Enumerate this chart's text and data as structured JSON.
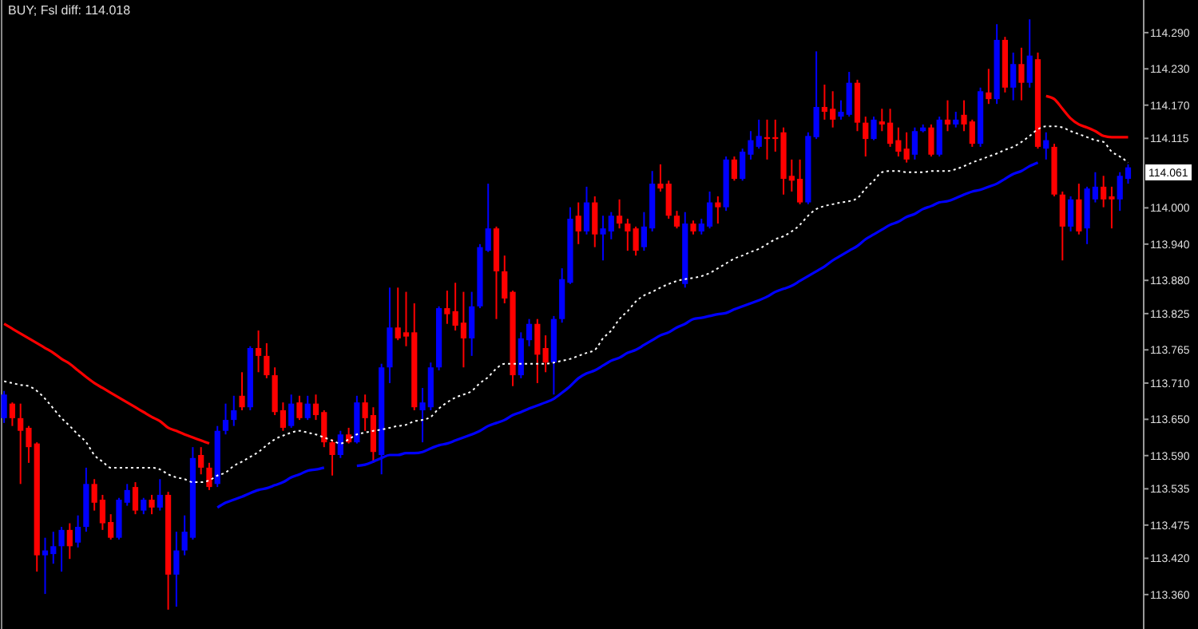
{
  "chart_data": {
    "type": "candlestick",
    "title": "BUY; Fsl diff: 114.018",
    "categories": [
      null,
      null,
      null,
      null,
      null,
      null,
      null,
      null,
      null,
      null,
      null,
      null,
      null,
      null,
      null,
      null,
      null,
      null,
      null,
      null,
      null,
      null,
      null,
      null,
      null,
      null,
      null,
      null,
      null,
      null,
      null,
      null,
      null,
      null,
      null,
      null,
      null,
      null,
      null,
      null,
      null,
      null,
      null,
      null,
      null,
      null,
      null,
      null,
      null,
      null,
      null,
      null,
      null,
      null,
      null,
      null,
      null,
      null,
      null,
      null,
      null,
      null,
      null,
      null,
      null,
      null,
      null,
      null,
      null,
      null,
      null,
      null,
      null,
      null,
      null,
      null,
      null,
      null,
      null,
      null,
      null,
      null,
      null,
      null,
      null,
      null,
      null,
      null,
      null,
      null,
      null,
      null,
      null,
      null,
      null,
      null,
      null,
      null,
      null,
      null,
      null,
      null,
      null,
      null,
      null,
      null,
      null,
      null,
      null,
      null,
      null,
      null,
      null,
      null,
      null,
      null,
      null,
      null,
      null,
      null,
      null,
      null,
      null,
      null,
      null,
      null,
      null,
      null,
      null,
      null,
      null,
      null,
      null,
      null,
      null,
      null,
      null,
      null
    ],
    "ohlc": [
      [
        113.652,
        113.697,
        113.644,
        113.691
      ],
      [
        113.676,
        113.678,
        113.639,
        113.652
      ],
      [
        113.652,
        113.676,
        113.543,
        113.631
      ],
      [
        113.636,
        113.639,
        113.578,
        113.604
      ],
      [
        113.61,
        113.612,
        113.398,
        113.425
      ],
      [
        113.425,
        113.454,
        113.361,
        113.433
      ],
      [
        113.427,
        113.464,
        113.411,
        113.44
      ],
      [
        113.44,
        113.472,
        113.398,
        113.467
      ],
      [
        113.467,
        113.478,
        113.419,
        113.44
      ],
      [
        113.446,
        113.491,
        113.438,
        113.472
      ],
      [
        113.472,
        113.57,
        113.464,
        113.543
      ],
      [
        113.543,
        113.551,
        113.499,
        113.512
      ],
      [
        113.517,
        113.525,
        113.467,
        113.478
      ],
      [
        113.48,
        113.493,
        113.451,
        113.454
      ],
      [
        113.454,
        113.52,
        113.451,
        113.517
      ],
      [
        113.512,
        113.543,
        113.507,
        113.533
      ],
      [
        113.538,
        113.546,
        113.493,
        113.499
      ],
      [
        113.499,
        113.52,
        113.493,
        113.517
      ],
      [
        113.517,
        113.525,
        113.493,
        113.504
      ],
      [
        113.504,
        113.551,
        113.499,
        113.525
      ],
      [
        113.525,
        113.53,
        113.335,
        113.393
      ],
      [
        113.393,
        113.464,
        113.34,
        113.433
      ],
      [
        113.433,
        113.491,
        113.425,
        113.464
      ],
      [
        113.454,
        113.604,
        113.451,
        113.586
      ],
      [
        113.591,
        113.604,
        113.559,
        113.57
      ],
      [
        113.57,
        113.578,
        113.533,
        113.538
      ],
      [
        113.543,
        113.639,
        113.538,
        113.631
      ],
      [
        113.631,
        113.676,
        113.625,
        113.649
      ],
      [
        113.649,
        113.689,
        113.639,
        113.665
      ],
      [
        113.689,
        113.728,
        113.665,
        113.67
      ],
      [
        113.67,
        113.771,
        113.665,
        113.768
      ],
      [
        113.768,
        113.797,
        113.728,
        113.755
      ],
      [
        113.755,
        113.776,
        113.718,
        113.723
      ],
      [
        113.723,
        113.736,
        113.657,
        113.662
      ],
      [
        113.665,
        113.678,
        113.631,
        113.636
      ],
      [
        113.639,
        113.691,
        113.636,
        113.676
      ],
      [
        113.678,
        113.689,
        113.649,
        113.652
      ],
      [
        113.652,
        113.689,
        113.649,
        113.676
      ],
      [
        113.676,
        113.691,
        113.649,
        113.657
      ],
      [
        113.662,
        113.665,
        113.604,
        113.612
      ],
      [
        113.612,
        113.617,
        113.557,
        113.591
      ],
      [
        113.591,
        113.631,
        113.586,
        113.625
      ],
      [
        113.625,
        113.636,
        113.61,
        113.612
      ],
      [
        113.612,
        113.689,
        113.61,
        113.678
      ],
      [
        113.678,
        113.691,
        113.631,
        113.652
      ],
      [
        113.657,
        113.67,
        113.578,
        113.596
      ],
      [
        113.591,
        113.742,
        113.559,
        113.736
      ],
      [
        113.736,
        113.868,
        113.71,
        113.802
      ],
      [
        113.802,
        113.868,
        113.781,
        113.784
      ],
      [
        113.794,
        113.861,
        113.771,
        113.787
      ],
      [
        113.794,
        113.842,
        113.665,
        113.67
      ],
      [
        113.665,
        113.702,
        113.612,
        113.678
      ],
      [
        113.67,
        113.744,
        113.665,
        113.736
      ],
      [
        113.736,
        113.837,
        113.731,
        113.834
      ],
      [
        113.834,
        113.863,
        113.808,
        113.824
      ],
      [
        113.829,
        113.876,
        113.797,
        113.805
      ],
      [
        113.81,
        113.861,
        113.736,
        113.784
      ],
      [
        113.784,
        113.861,
        113.755,
        113.837
      ],
      [
        113.837,
        113.94,
        113.834,
        113.935
      ],
      [
        113.929,
        114.04,
        113.927,
        113.966
      ],
      [
        113.966,
        113.969,
        113.816,
        113.895
      ],
      [
        113.895,
        113.921,
        113.842,
        113.85
      ],
      [
        113.861,
        113.863,
        113.705,
        113.723
      ],
      [
        113.723,
        113.794,
        113.718,
        113.784
      ],
      [
        113.781,
        113.816,
        113.771,
        113.808
      ],
      [
        113.808,
        113.816,
        113.71,
        113.757
      ],
      [
        113.768,
        113.789,
        113.728,
        113.744
      ],
      [
        113.744,
        113.821,
        113.691,
        113.816
      ],
      [
        113.816,
        113.9,
        113.81,
        113.882
      ],
      [
        113.876,
        114.001,
        113.874,
        113.982
      ],
      [
        113.987,
        114.009,
        113.94,
        113.961
      ],
      [
        113.961,
        114.035,
        113.956,
        114.009
      ],
      [
        114.009,
        114.019,
        113.935,
        113.956
      ],
      [
        113.956,
        113.987,
        113.913,
        113.966
      ],
      [
        113.961,
        113.993,
        113.948,
        113.987
      ],
      [
        113.987,
        114.014,
        113.966,
        113.974
      ],
      [
        113.974,
        113.982,
        113.929,
        113.961
      ],
      [
        113.966,
        113.969,
        113.921,
        113.929
      ],
      [
        113.935,
        113.993,
        113.929,
        113.969
      ],
      [
        113.966,
        114.061,
        113.961,
        114.04
      ],
      [
        114.04,
        114.072,
        114.027,
        114.032
      ],
      [
        114.04,
        114.045,
        113.982,
        113.987
      ],
      [
        113.987,
        113.995,
        113.966,
        113.969
      ],
      [
        113.874,
        113.993,
        113.868,
        113.974
      ],
      [
        113.974,
        113.979,
        113.956,
        113.961
      ],
      [
        113.961,
        113.982,
        113.956,
        113.974
      ],
      [
        113.969,
        114.027,
        113.966,
        114.009
      ],
      [
        114.009,
        114.019,
        113.974,
        114.001
      ],
      [
        114.001,
        114.085,
        113.995,
        114.08
      ],
      [
        114.08,
        114.085,
        114.045,
        114.048
      ],
      [
        114.048,
        114.098,
        114.045,
        114.093
      ],
      [
        114.088,
        114.127,
        114.08,
        114.112
      ],
      [
        114.101,
        114.146,
        114.098,
        114.119
      ],
      [
        114.117,
        114.146,
        114.08,
        114.114
      ],
      [
        114.117,
        114.146,
        114.093,
        114.114
      ],
      [
        114.125,
        114.133,
        114.022,
        114.048
      ],
      [
        114.053,
        114.08,
        114.027,
        114.045
      ],
      [
        114.048,
        114.08,
        114.006,
        114.009
      ],
      [
        114.009,
        114.125,
        114.006,
        114.119
      ],
      [
        114.117,
        114.259,
        114.114,
        114.167
      ],
      [
        114.167,
        114.204,
        114.146,
        114.159
      ],
      [
        114.164,
        114.193,
        114.133,
        114.146
      ],
      [
        114.151,
        114.178,
        114.146,
        114.159
      ],
      [
        114.154,
        114.225,
        114.151,
        114.207
      ],
      [
        114.207,
        114.212,
        114.127,
        114.141
      ],
      [
        114.141,
        114.151,
        114.085,
        114.114
      ],
      [
        114.114,
        114.151,
        114.112,
        114.146
      ],
      [
        114.143,
        114.164,
        114.127,
        114.138
      ],
      [
        114.141,
        114.164,
        114.101,
        114.106
      ],
      [
        114.112,
        114.133,
        114.085,
        114.093
      ],
      [
        114.098,
        114.125,
        114.075,
        114.08
      ],
      [
        114.088,
        114.133,
        114.08,
        114.127
      ],
      [
        114.127,
        114.138,
        114.125,
        114.133
      ],
      [
        114.133,
        114.138,
        114.085,
        114.088
      ],
      [
        114.088,
        114.151,
        114.085,
        114.146
      ],
      [
        114.146,
        114.178,
        114.127,
        114.138
      ],
      [
        114.138,
        114.159,
        114.133,
        114.146
      ],
      [
        114.154,
        114.178,
        114.127,
        114.138
      ],
      [
        114.143,
        114.146,
        114.101,
        114.106
      ],
      [
        114.106,
        114.199,
        114.101,
        114.193
      ],
      [
        114.191,
        114.23,
        114.172,
        114.18
      ],
      [
        114.18,
        114.304,
        114.172,
        114.278
      ],
      [
        114.278,
        114.283,
        114.191,
        114.199
      ],
      [
        114.199,
        114.257,
        114.178,
        114.238
      ],
      [
        114.238,
        114.265,
        114.178,
        114.207
      ],
      [
        114.207,
        114.312,
        114.199,
        114.252
      ],
      [
        114.246,
        114.257,
        114.098,
        114.101
      ],
      [
        114.098,
        114.125,
        114.08,
        114.112
      ],
      [
        114.101,
        114.106,
        114.019,
        114.022
      ],
      [
        114.022,
        114.027,
        113.913,
        113.969
      ],
      [
        113.969,
        114.019,
        113.961,
        114.014
      ],
      [
        114.014,
        114.04,
        113.956,
        113.961
      ],
      [
        113.966,
        114.035,
        113.94,
        114.032
      ],
      [
        114.014,
        114.059,
        114.009,
        114.035
      ],
      [
        114.035,
        114.053,
        114.001,
        114.014
      ],
      [
        114.019,
        114.035,
        113.966,
        114.014
      ],
      [
        114.014,
        114.059,
        113.995,
        114.053
      ],
      [
        114.048,
        114.072,
        114.04,
        114.067
      ]
    ],
    "colors": [
      "#0000ff",
      "#ff0000",
      "#ff0000",
      "#ff0000",
      "#ff0000",
      "#0000ff",
      "#0000ff",
      "#0000ff",
      "#ff0000",
      "#0000ff",
      "#0000ff",
      "#ff0000",
      "#ff0000",
      "#ff0000",
      "#0000ff",
      "#0000ff",
      "#ff0000",
      "#0000ff",
      "#ff0000",
      "#0000ff",
      "#ff0000",
      "#0000ff",
      "#0000ff",
      "#0000ff",
      "#ff0000",
      "#ff0000",
      "#0000ff",
      "#0000ff",
      "#0000ff",
      "#ff0000",
      "#0000ff",
      "#ff0000",
      "#ff0000",
      "#ff0000",
      "#ff0000",
      "#0000ff",
      "#ff0000",
      "#0000ff",
      "#ff0000",
      "#ff0000",
      "#ff0000",
      "#0000ff",
      "#ff0000",
      "#0000ff",
      "#ff0000",
      "#ff0000",
      "#0000ff",
      "#0000ff",
      "#ff0000",
      "#ff0000",
      "#ff0000",
      "#0000ff",
      "#0000ff",
      "#0000ff",
      "#ff0000",
      "#ff0000",
      "#ff0000",
      "#0000ff",
      "#0000ff",
      "#0000ff",
      "#ff0000",
      "#ff0000",
      "#ff0000",
      "#0000ff",
      "#0000ff",
      "#ff0000",
      "#ff0000",
      "#0000ff",
      "#0000ff",
      "#0000ff",
      "#ff0000",
      "#0000ff",
      "#ff0000",
      "#0000ff",
      "#0000ff",
      "#ff0000",
      "#ff0000",
      "#ff0000",
      "#0000ff",
      "#0000ff",
      "#ff0000",
      "#ff0000",
      "#ff0000",
      "#0000ff",
      "#ff0000",
      "#0000ff",
      "#0000ff",
      "#ff0000",
      "#0000ff",
      "#ff0000",
      "#0000ff",
      "#0000ff",
      "#0000ff",
      "#ff0000",
      "#ff0000",
      "#ff0000",
      "#ff0000",
      "#ff0000",
      "#0000ff",
      "#0000ff",
      "#ff0000",
      "#ff0000",
      "#0000ff",
      "#0000ff",
      "#ff0000",
      "#ff0000",
      "#0000ff",
      "#ff0000",
      "#ff0000",
      "#ff0000",
      "#ff0000",
      "#0000ff",
      "#0000ff",
      "#ff0000",
      "#0000ff",
      "#ff0000",
      "#0000ff",
      "#ff0000",
      "#ff0000",
      "#0000ff",
      "#ff0000",
      "#0000ff",
      "#ff0000",
      "#0000ff",
      "#ff0000",
      "#0000ff",
      "#ff0000",
      "#0000ff",
      "#ff0000",
      "#ff0000",
      "#0000ff",
      "#ff0000",
      "#0000ff",
      "#0000ff",
      "#ff0000",
      "#ff0000",
      "#0000ff",
      "#0000ff"
    ],
    "series": [
      {
        "type": "line",
        "color": "#ff0000",
        "values": [
          113.808,
          113.8,
          113.792,
          113.784,
          113.776,
          113.768,
          113.76,
          113.75,
          113.742,
          113.731,
          113.72,
          113.71,
          113.702,
          113.694,
          113.686,
          113.678,
          113.67,
          113.662,
          113.654,
          113.647,
          113.636,
          113.631,
          113.625,
          113.62,
          113.615,
          113.61,
          null,
          null,
          null,
          null,
          null,
          null,
          null,
          null,
          null,
          null,
          null,
          null,
          null,
          null,
          null,
          null,
          null,
          null,
          null,
          null,
          null,
          null,
          null,
          null,
          null,
          null,
          null,
          null,
          null,
          null,
          null,
          null,
          null,
          null,
          null,
          null,
          null,
          null,
          null,
          null,
          null,
          null,
          null,
          null,
          null,
          null,
          null,
          null,
          null,
          null,
          null,
          null,
          null,
          null,
          null,
          null,
          null,
          null,
          null,
          null,
          null,
          null,
          null,
          null,
          null,
          null,
          null,
          null,
          null,
          null,
          null,
          null,
          null,
          null,
          null,
          null,
          null,
          null,
          null,
          null,
          null,
          null,
          null,
          null,
          null,
          null,
          null,
          null,
          null,
          null,
          null,
          null,
          null,
          null,
          null,
          null,
          null,
          null,
          null,
          null,
          null,
          114.185,
          114.18,
          114.164,
          114.148,
          114.138,
          114.133,
          114.127,
          114.119,
          114.117,
          114.117,
          114.117
        ]
      },
      {
        "type": "line",
        "color": "#ffffff",
        "line_style": "dotted",
        "values": [
          113.713,
          113.71,
          113.707,
          113.705,
          113.697,
          113.684,
          113.668,
          113.652,
          113.639,
          113.625,
          113.612,
          113.591,
          113.58,
          113.57,
          113.57,
          113.57,
          113.57,
          113.57,
          113.57,
          113.567,
          113.559,
          113.554,
          113.551,
          113.546,
          113.546,
          113.549,
          113.557,
          113.562,
          113.573,
          113.58,
          113.588,
          113.596,
          113.607,
          113.617,
          113.623,
          113.628,
          113.631,
          113.628,
          113.625,
          113.62,
          113.615,
          113.61,
          113.617,
          113.625,
          113.628,
          113.631,
          113.633,
          113.636,
          113.639,
          113.641,
          113.647,
          113.649,
          113.654,
          113.668,
          113.678,
          113.686,
          113.691,
          113.697,
          113.71,
          113.72,
          113.734,
          113.742,
          113.742,
          113.742,
          113.742,
          113.742,
          113.742,
          113.744,
          113.747,
          113.75,
          113.755,
          113.76,
          113.765,
          113.784,
          113.797,
          113.816,
          113.829,
          113.845,
          113.855,
          113.861,
          113.868,
          113.874,
          113.879,
          113.882,
          113.884,
          113.887,
          113.892,
          113.9,
          113.908,
          113.916,
          113.921,
          113.927,
          113.932,
          113.94,
          113.948,
          113.953,
          113.961,
          113.972,
          113.987,
          113.998,
          114.003,
          114.006,
          114.009,
          114.011,
          114.016,
          114.032,
          114.045,
          114.059,
          114.061,
          114.061,
          114.059,
          114.059,
          114.059,
          114.061,
          114.061,
          114.061,
          114.064,
          114.069,
          114.075,
          114.08,
          114.085,
          114.09,
          114.096,
          114.101,
          114.109,
          114.119,
          114.13,
          114.135,
          114.135,
          114.133,
          114.127,
          114.122,
          114.117,
          114.112,
          114.109,
          114.093,
          114.085,
          114.075
        ]
      },
      {
        "type": "line",
        "color": "#0000ff",
        "values": [
          null,
          null,
          null,
          null,
          null,
          null,
          null,
          null,
          null,
          null,
          null,
          null,
          null,
          null,
          null,
          null,
          null,
          null,
          null,
          null,
          null,
          null,
          null,
          null,
          null,
          null,
          113.504,
          113.512,
          113.517,
          113.522,
          113.528,
          113.533,
          113.536,
          113.541,
          113.546,
          113.554,
          113.559,
          113.565,
          113.567,
          113.57,
          null,
          null,
          null,
          113.573,
          113.575,
          113.58,
          113.586,
          113.591,
          113.591,
          113.594,
          113.594,
          113.596,
          113.602,
          113.607,
          113.61,
          113.615,
          113.62,
          113.625,
          113.631,
          113.639,
          113.644,
          113.649,
          113.657,
          113.662,
          113.668,
          113.673,
          113.678,
          113.684,
          113.694,
          113.705,
          113.718,
          113.726,
          113.731,
          113.739,
          113.747,
          113.752,
          113.76,
          113.765,
          113.773,
          113.781,
          113.789,
          113.794,
          113.802,
          113.808,
          113.816,
          113.818,
          113.821,
          113.824,
          113.826,
          113.832,
          113.837,
          113.842,
          113.847,
          113.853,
          113.861,
          113.866,
          113.871,
          113.879,
          113.887,
          113.895,
          113.903,
          113.913,
          113.921,
          113.929,
          113.937,
          113.948,
          113.956,
          113.964,
          113.972,
          113.977,
          113.985,
          113.99,
          113.998,
          114.003,
          114.009,
          114.011,
          114.016,
          114.022,
          114.027,
          114.03,
          114.035,
          114.04,
          114.048,
          114.056,
          114.061,
          114.069,
          114.075,
          null,
          null,
          null,
          null,
          null,
          null,
          null,
          null,
          null,
          null,
          null
        ]
      }
    ],
    "ylim": [
      113.303,
      114.344
    ],
    "yticks": [
      {
        "value": 114.29,
        "label": "114.290"
      },
      {
        "value": 114.23,
        "label": "114.230"
      },
      {
        "value": 114.17,
        "label": "114.170"
      },
      {
        "value": 114.115,
        "label": "114.115"
      },
      {
        "value": 114.0,
        "label": "114.000"
      },
      {
        "value": 113.94,
        "label": "113.940"
      },
      {
        "value": 113.88,
        "label": "113.880"
      },
      {
        "value": 113.825,
        "label": "113.825"
      },
      {
        "value": 113.765,
        "label": "113.765"
      },
      {
        "value": 113.71,
        "label": "113.710"
      },
      {
        "value": 113.65,
        "label": "113.650"
      },
      {
        "value": 113.59,
        "label": "113.590"
      },
      {
        "value": 113.535,
        "label": "113.535"
      },
      {
        "value": 113.475,
        "label": "113.475"
      },
      {
        "value": 113.42,
        "label": "113.420"
      },
      {
        "value": 113.36,
        "label": "113.360"
      }
    ],
    "annotations": [
      "114.061"
    ],
    "tick_labels": "y"
  }
}
